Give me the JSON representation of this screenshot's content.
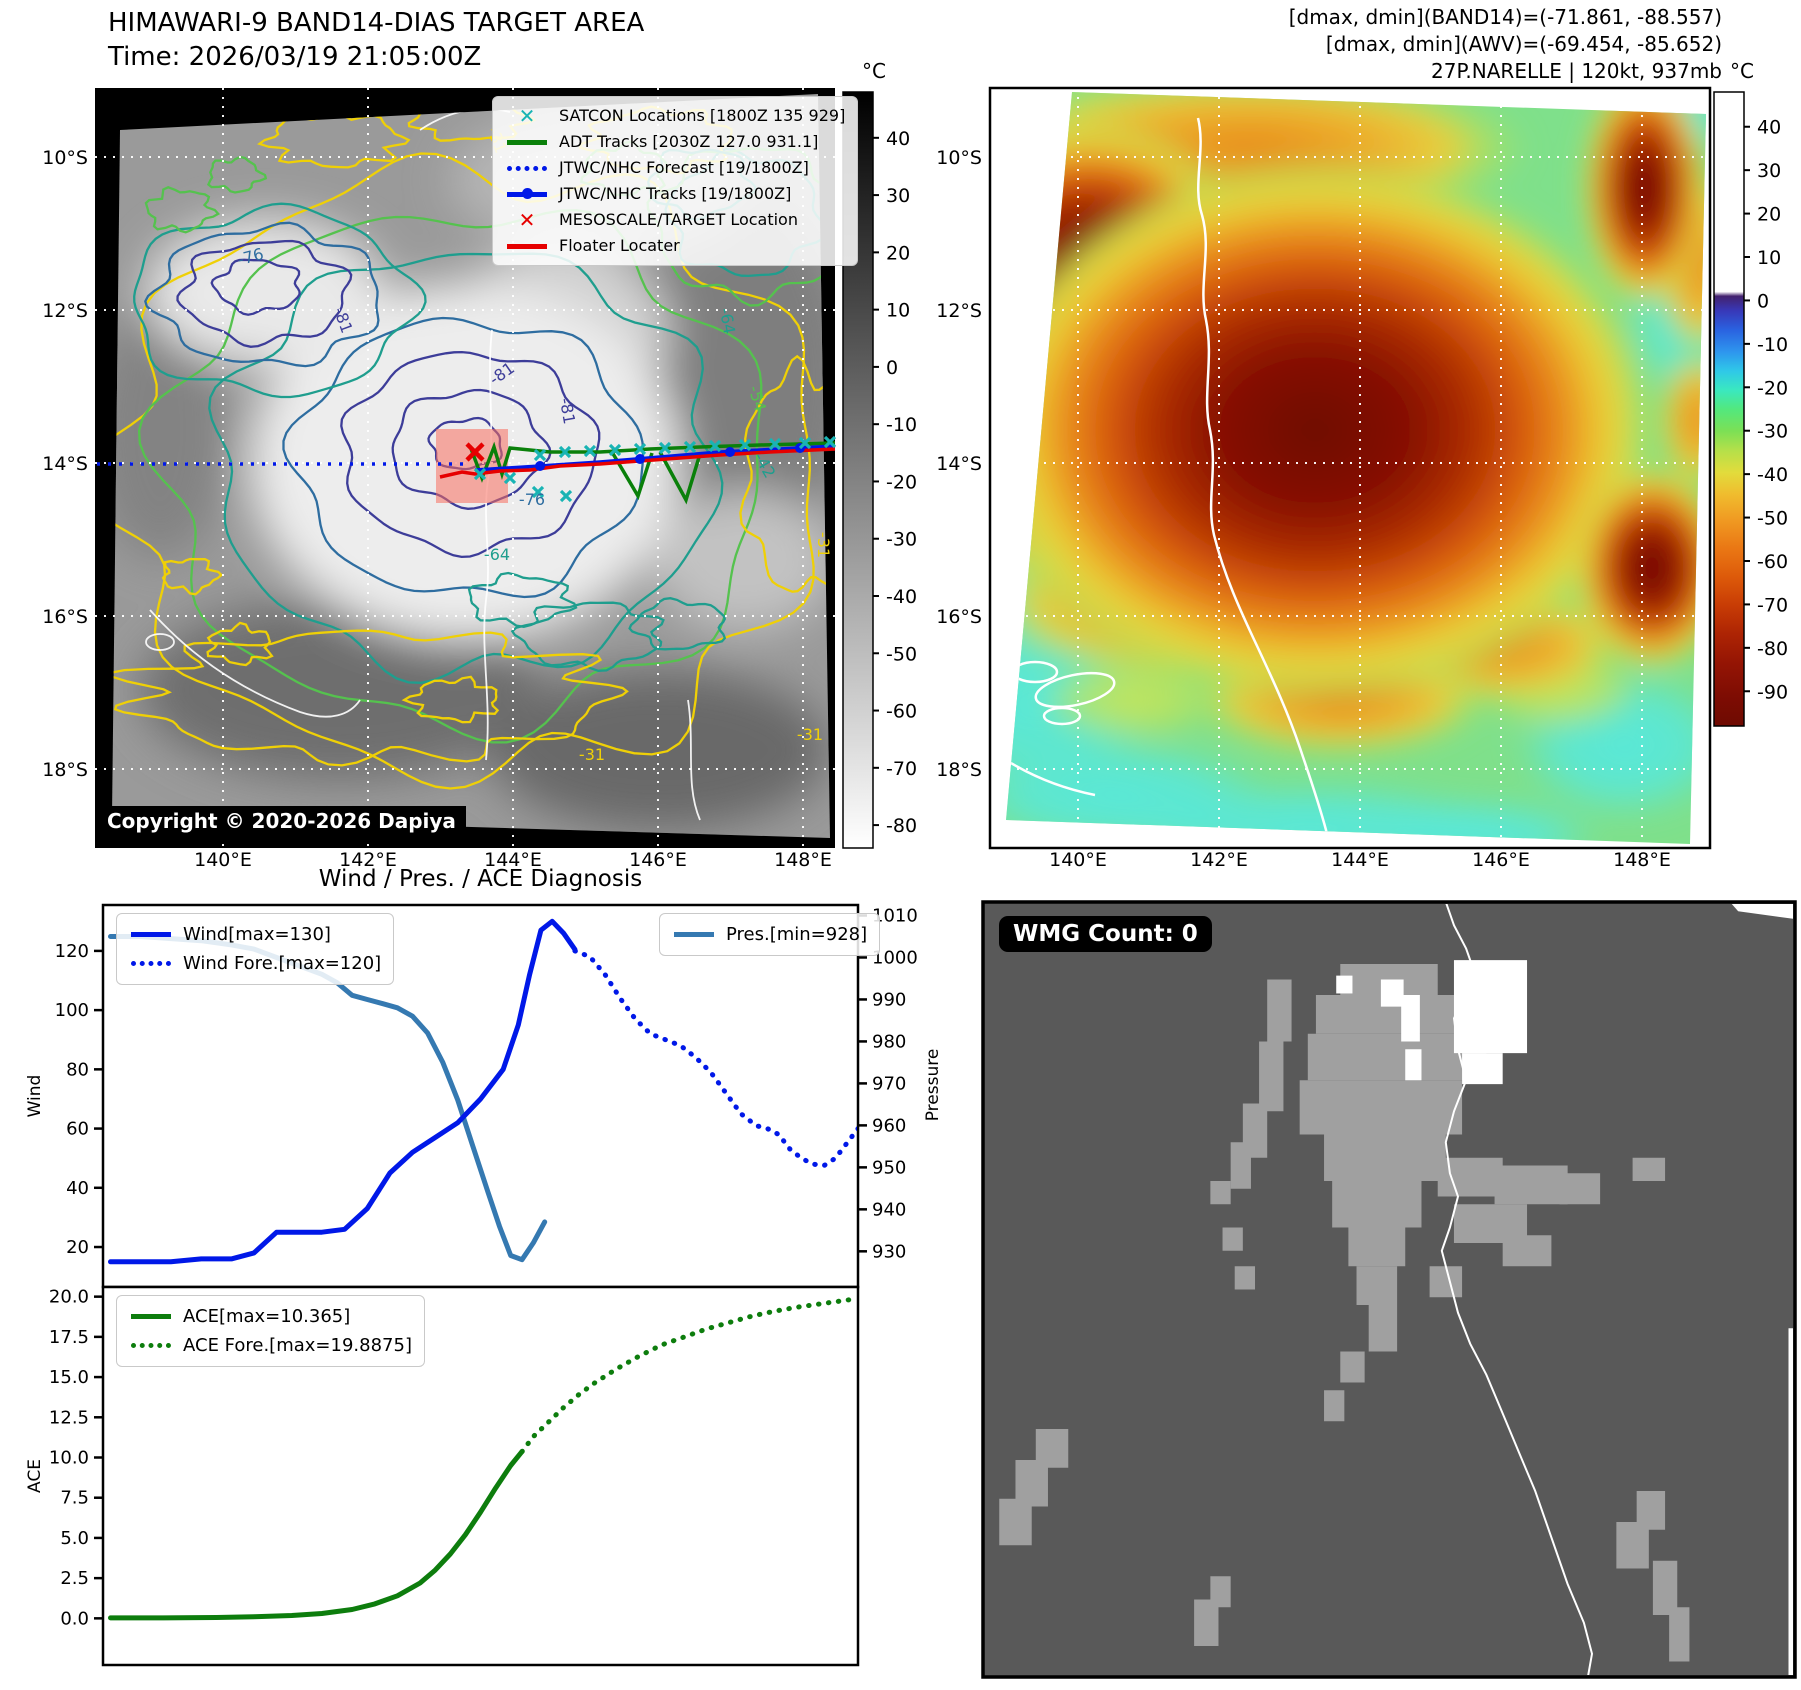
{
  "band14": {
    "title": "HIMAWARI-9 BAND14-DIAS TARGET AREA",
    "time": "Time: 2026/03/19 21:05:00Z",
    "copyright": "Copyright © 2020-2026 Dapiya",
    "colorbar": {
      "unit": "°C",
      "ticks": [
        "40",
        "30",
        "20",
        "10",
        "0",
        "-10",
        "-20",
        "-30",
        "-40",
        "-50",
        "-60",
        "-70",
        "-80"
      ]
    },
    "lat_ticks": [
      "10°S",
      "12°S",
      "14°S",
      "16°S",
      "18°S"
    ],
    "lon_ticks": [
      "140°E",
      "142°E",
      "144°E",
      "146°E",
      "148°E"
    ],
    "legend": [
      {
        "marker": "x",
        "color": "#19b4b4",
        "label": "SATCON Locations [1800Z 135 929]"
      },
      {
        "marker": "line",
        "color": "#0a800a",
        "label": "ADT Tracks [2030Z 127.0 931.1]"
      },
      {
        "marker": "dotted",
        "color": "#0018e8",
        "label": "JTWC/NHC Forecast [19/1800Z]"
      },
      {
        "marker": "linedot",
        "color": "#0018e8",
        "label": "JTWC/NHC Tracks [19/1800Z]"
      },
      {
        "marker": "x",
        "color": "#e60000",
        "label": "MESOSCALE/TARGET Location"
      },
      {
        "marker": "line",
        "color": "#e60000",
        "label": "Floater Locater"
      }
    ],
    "contour_labels": [
      "-31",
      "-42",
      "-54",
      "-64",
      "-76",
      "-81"
    ]
  },
  "awv": {
    "header": [
      "[dmax, dmin](BAND14)=(-71.861, -88.557)",
      "[dmax, dmin](AWV)=(-69.454, -85.652)",
      "27P.NARELLE | 120kt, 937mb"
    ],
    "colorbar": {
      "unit": "°C",
      "ticks": [
        "40",
        "30",
        "20",
        "10",
        "0",
        "-10",
        "-20",
        "-30",
        "-40",
        "-50",
        "-60",
        "-70",
        "-80",
        "-90"
      ]
    },
    "lat_ticks": [
      "10°S",
      "12°S",
      "14°S",
      "16°S",
      "18°S"
    ],
    "lon_ticks": [
      "140°E",
      "142°E",
      "144°E",
      "146°E",
      "148°E"
    ]
  },
  "diagnosis": {
    "title": "Wind / Pres. / ACE Diagnosis"
  },
  "wmg": {
    "badge": "WMG Count: 0",
    "gray_patches": [
      [
        44,
        8,
        12,
        4
      ],
      [
        41,
        12,
        19,
        5
      ],
      [
        40,
        17,
        22,
        6
      ],
      [
        39,
        23,
        20,
        7
      ],
      [
        42,
        30,
        15,
        6
      ],
      [
        43,
        36,
        11,
        6
      ],
      [
        45,
        42,
        7,
        5
      ],
      [
        46,
        47,
        5,
        5
      ],
      [
        47.5,
        52,
        3.5,
        6
      ],
      [
        35,
        10,
        3,
        8
      ],
      [
        34,
        18,
        3,
        9
      ],
      [
        32,
        26,
        3,
        7
      ],
      [
        30.5,
        31,
        2.5,
        6
      ],
      [
        28,
        36,
        2.5,
        3
      ],
      [
        29.5,
        42,
        2.5,
        3
      ],
      [
        31,
        47,
        2.5,
        3
      ],
      [
        44,
        58,
        3,
        4
      ],
      [
        42,
        63,
        2.5,
        4
      ],
      [
        56,
        33,
        8,
        5
      ],
      [
        63,
        34,
        9,
        5
      ],
      [
        71,
        35,
        5,
        4
      ],
      [
        58,
        39,
        9,
        5
      ],
      [
        64,
        43,
        6,
        4
      ],
      [
        55,
        47,
        4,
        4
      ],
      [
        80,
        33,
        4,
        3
      ],
      [
        4,
        72,
        4,
        6
      ],
      [
        6.5,
        68,
        4,
        5
      ],
      [
        2,
        77,
        4,
        6
      ],
      [
        26,
        90,
        3,
        6
      ],
      [
        28,
        87,
        2.5,
        4
      ],
      [
        78,
        80,
        4,
        6
      ],
      [
        80.5,
        76,
        3.5,
        5
      ],
      [
        82.5,
        85,
        3,
        7
      ],
      [
        84.5,
        91,
        2.5,
        7
      ]
    ],
    "white_patches": [
      [
        58,
        7.5,
        9,
        12
      ],
      [
        59,
        19.5,
        5,
        4
      ],
      [
        49,
        10,
        2.8,
        3.5
      ],
      [
        51.5,
        12,
        2.3,
        6
      ],
      [
        52,
        19,
        2,
        4
      ],
      [
        43.5,
        9.5,
        2,
        2.3
      ]
    ],
    "coastline": [
      [
        57,
        0
      ],
      [
        58,
        3
      ],
      [
        59.5,
        6
      ],
      [
        60.5,
        9
      ],
      [
        59.5,
        12
      ],
      [
        58,
        15
      ],
      [
        58.5,
        19
      ],
      [
        59.5,
        23
      ],
      [
        58,
        27
      ],
      [
        57,
        31
      ],
      [
        57.5,
        35
      ],
      [
        58.5,
        38
      ],
      [
        57.5,
        42
      ],
      [
        56.5,
        45
      ],
      [
        57.5,
        49
      ],
      [
        58.5,
        53
      ],
      [
        60,
        57
      ],
      [
        62,
        61
      ],
      [
        64,
        66
      ],
      [
        66,
        71
      ],
      [
        68,
        76
      ],
      [
        70,
        82
      ],
      [
        72,
        88
      ],
      [
        74,
        93
      ],
      [
        75,
        97
      ],
      [
        74.5,
        100
      ]
    ]
  },
  "chart_data": [
    {
      "type": "line",
      "title": "Wind / Pres. / ACE Diagnosis",
      "ylabel_left": "Wind",
      "ylabel_right": "Pressure",
      "yticks_left": [
        "120",
        "100",
        "80",
        "60",
        "40",
        "20"
      ],
      "yticks_right": [
        "1010",
        "1000",
        "990",
        "980",
        "970",
        "960",
        "950",
        "940",
        "930"
      ],
      "ylim_left": [
        6.5,
        135.5
      ],
      "ylim_right": [
        921.5,
        1012.5
      ],
      "xlim": [
        0,
        100
      ],
      "grid": false,
      "series": [
        {
          "name": "Wind[max=130]",
          "axis": "left",
          "style": "solid",
          "color": "#0018e8",
          "width": 5,
          "x": [
            1,
            5,
            9,
            13,
            17,
            20,
            23,
            26,
            29,
            32,
            35,
            38,
            41,
            44,
            47,
            50,
            53,
            55,
            56.5,
            58,
            59.5,
            61,
            62.5
          ],
          "y": [
            15,
            15,
            15,
            16,
            16,
            18,
            25,
            25,
            25,
            26,
            33,
            45,
            52,
            57,
            62,
            70,
            80,
            95,
            112,
            127,
            130,
            126,
            120.5
          ]
        },
        {
          "name": "Wind Fore.[max=120]",
          "axis": "left",
          "style": "dotted",
          "color": "#0018e8",
          "width": 5,
          "x": [
            62.5,
            64.5,
            66.5,
            68.5,
            70.5,
            72.5,
            74.5,
            76.5,
            78.5,
            80.5,
            82.5,
            84.5,
            86.5,
            88,
            89.5,
            91,
            92.5,
            94,
            95.5,
            97,
            98.5,
            100
          ],
          "y": [
            120,
            118,
            112,
            104,
            97,
            92,
            90,
            88,
            84,
            79,
            72,
            65,
            61,
            60,
            58,
            53,
            50,
            48,
            47.5,
            50,
            55,
            60
          ]
        },
        {
          "name": "Pres.[min=928]",
          "axis": "right",
          "style": "solid",
          "color": "#3579b1",
          "width": 5,
          "x": [
            1,
            5,
            9,
            13,
            17,
            20,
            23,
            26,
            29,
            31,
            33,
            35,
            37,
            39,
            41,
            43,
            45,
            47,
            49,
            51,
            52.5,
            54,
            55.5,
            57,
            58.5
          ],
          "y": [
            1005,
            1005,
            1004.5,
            1004,
            1003,
            1002,
            1000,
            998,
            996,
            994,
            991,
            990,
            989,
            988,
            986,
            982,
            975,
            966,
            955,
            944,
            936,
            929,
            928,
            932,
            937
          ]
        }
      ]
    },
    {
      "type": "line",
      "ylabel_left": "ACE",
      "yticks_left": [
        "20.0",
        "17.5",
        "15.0",
        "12.5",
        "10.0",
        "7.5",
        "5.0",
        "2.5",
        "0.0"
      ],
      "ylim_left": [
        -2.9,
        20.6
      ],
      "xlim": [
        0,
        100
      ],
      "grid": false,
      "series": [
        {
          "name": "ACE[max=10.365]",
          "axis": "left",
          "style": "solid",
          "color": "#0d7d0d",
          "width": 5,
          "x": [
            1,
            8,
            15,
            20,
            25,
            29,
            33,
            36,
            39,
            42,
            44,
            46,
            48,
            50,
            52,
            54,
            55.5
          ],
          "y": [
            0.03,
            0.03,
            0.05,
            0.1,
            0.18,
            0.3,
            0.55,
            0.9,
            1.4,
            2.2,
            3.0,
            4.0,
            5.2,
            6.6,
            8.1,
            9.5,
            10.365
          ]
        },
        {
          "name": "ACE Fore.[max=19.8875]",
          "axis": "left",
          "style": "dotted",
          "color": "#0d7d0d",
          "width": 5,
          "x": [
            55.5,
            57,
            59,
            61,
            63,
            65,
            68,
            71,
            74,
            77,
            80,
            83,
            86,
            89,
            92,
            95,
            98,
            100
          ],
          "y": [
            10.365,
            11.3,
            12.2,
            13.1,
            13.9,
            14.6,
            15.5,
            16.3,
            17.0,
            17.5,
            18.0,
            18.4,
            18.8,
            19.1,
            19.35,
            19.55,
            19.75,
            19.8875
          ]
        }
      ]
    }
  ]
}
